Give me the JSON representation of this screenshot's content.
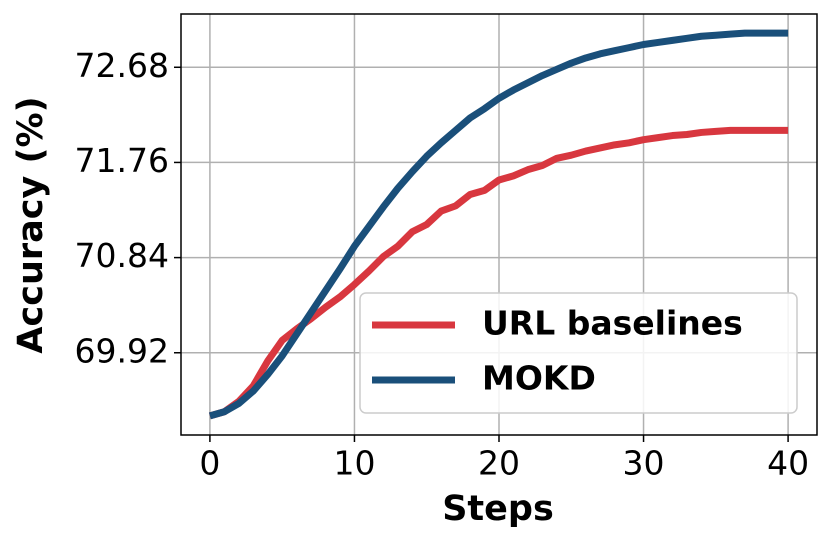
{
  "chart_data": {
    "type": "line",
    "x_label": "Steps",
    "y_label": "Accuracy (%)",
    "x": [
      0,
      1,
      2,
      3,
      4,
      5,
      6,
      7,
      8,
      9,
      10,
      11,
      12,
      13,
      14,
      15,
      16,
      17,
      18,
      19,
      20,
      21,
      22,
      23,
      24,
      25,
      26,
      27,
      28,
      29,
      30,
      31,
      32,
      33,
      34,
      35,
      36,
      37,
      38,
      39,
      40
    ],
    "series": [
      {
        "name": "URL baselines",
        "color": "#d8373f",
        "values": [
          69.31,
          69.35,
          69.45,
          69.6,
          69.84,
          70.04,
          70.15,
          70.25,
          70.36,
          70.46,
          70.58,
          70.71,
          70.85,
          70.95,
          71.09,
          71.16,
          71.29,
          71.34,
          71.45,
          71.49,
          71.59,
          71.63,
          71.69,
          71.73,
          71.8,
          71.83,
          71.87,
          71.9,
          71.93,
          71.95,
          71.98,
          72.0,
          72.02,
          72.03,
          72.05,
          72.06,
          72.07,
          72.07,
          72.07,
          72.07,
          72.07
        ]
      },
      {
        "name": "MOKD",
        "color": "#1a4f7a",
        "values": [
          69.31,
          69.35,
          69.43,
          69.55,
          69.71,
          69.89,
          70.1,
          70.31,
          70.52,
          70.73,
          70.95,
          71.14,
          71.33,
          71.51,
          71.67,
          71.82,
          71.95,
          72.07,
          72.19,
          72.28,
          72.38,
          72.46,
          72.53,
          72.6,
          72.66,
          72.72,
          72.77,
          72.81,
          72.84,
          72.87,
          72.9,
          72.92,
          72.94,
          72.96,
          72.98,
          72.99,
          73.0,
          73.01,
          73.01,
          73.01,
          73.01
        ]
      }
    ],
    "xlim": [
      -2,
      42
    ],
    "xticks": [
      0,
      10,
      20,
      30,
      40
    ],
    "ylim": [
      69.125,
      73.195
    ],
    "yticks": [
      69.92,
      70.84,
      71.76,
      72.68
    ],
    "grid": true,
    "legend": "lower right"
  }
}
